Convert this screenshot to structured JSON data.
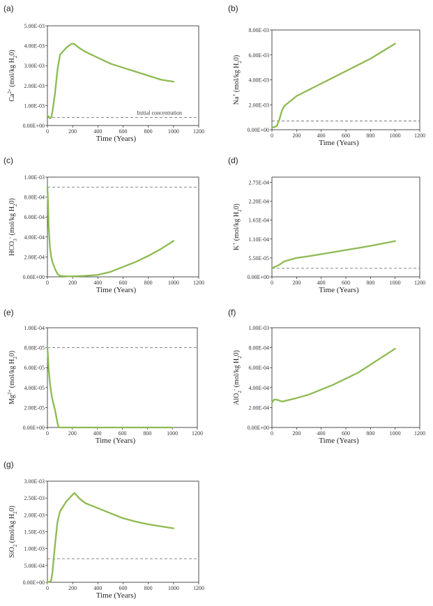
{
  "figure": {
    "colors": {
      "series": "#8cba51",
      "reference": "#777777",
      "axis": "#222222"
    }
  },
  "chart_data": [
    {
      "id": "a",
      "panel_label": "(a)",
      "type": "line",
      "ylabel_parts": [
        [
          "Ca",
          "n"
        ],
        [
          "2+",
          "sup"
        ],
        [
          " (mol/kg H",
          "n"
        ],
        [
          "2",
          "sub"
        ],
        [
          "0)",
          "n"
        ]
      ],
      "xlabel": "Time (Years)",
      "xlim": [
        0,
        1200
      ],
      "xticks": [
        0,
        200,
        400,
        600,
        800,
        1000,
        1200
      ],
      "ylim": [
        0,
        0.005
      ],
      "yticks": [
        0,
        0.001,
        0.002,
        0.003,
        0.004,
        0.005
      ],
      "ytick_labels": [
        "0.00E+00",
        "1.00E-03",
        "2.00E-03",
        "3.00E-03",
        "4.00E-03",
        "5.00E-03"
      ],
      "reference_value": 0.0004,
      "annotation": "Initial concentration",
      "series": [
        {
          "name": "Ca2+",
          "x": [
            0,
            10,
            20,
            30,
            40,
            60,
            80,
            100,
            150,
            190,
            210,
            250,
            300,
            400,
            500,
            600,
            700,
            800,
            900,
            1000
          ],
          "y": [
            0.0005,
            0.00045,
            0.00036,
            0.0004,
            0.0007,
            0.0016,
            0.0028,
            0.00355,
            0.0039,
            0.0041,
            0.0041,
            0.0039,
            0.0037,
            0.0034,
            0.0031,
            0.0029,
            0.0027,
            0.0025,
            0.0023,
            0.0022
          ]
        }
      ]
    },
    {
      "id": "b",
      "panel_label": "(b)",
      "type": "line",
      "ylabel_parts": [
        [
          "Na",
          "n"
        ],
        [
          "+",
          "sup"
        ],
        [
          " (mol/kg H",
          "n"
        ],
        [
          "2",
          "sub"
        ],
        [
          "0)",
          "n"
        ]
      ],
      "xlabel": "Time (Years)",
      "xlim": [
        0,
        1200
      ],
      "xticks": [
        0,
        200,
        400,
        600,
        800,
        1000,
        1200
      ],
      "ylim": [
        0,
        0.008
      ],
      "yticks": [
        0,
        0.002,
        0.004,
        0.006,
        0.008
      ],
      "ytick_labels": [
        "0.00E+00",
        "2.00E-03",
        "4.00E-03",
        "6.00E-03",
        "8.00E-03"
      ],
      "reference_value": 0.0007,
      "series": [
        {
          "name": "Na+",
          "x": [
            0,
            20,
            40,
            60,
            80,
            100,
            150,
            200,
            300,
            400,
            500,
            600,
            700,
            800,
            900,
            1000
          ],
          "y": [
            0.0002,
            0.0002,
            0.0003,
            0.0008,
            0.0015,
            0.0019,
            0.0023,
            0.0027,
            0.0032,
            0.0037,
            0.0042,
            0.0047,
            0.0052,
            0.0057,
            0.0063,
            0.0069
          ]
        }
      ]
    },
    {
      "id": "c",
      "panel_label": "(c)",
      "type": "line",
      "ylabel_parts": [
        [
          "HCO",
          "n"
        ],
        [
          "3",
          "sub"
        ],
        [
          "-",
          "sup"
        ],
        [
          " (mol/kg H",
          "n"
        ],
        [
          "2",
          "sub"
        ],
        [
          "0)",
          "n"
        ]
      ],
      "xlabel": "Time (Years)",
      "xlim": [
        0,
        1200
      ],
      "xticks": [
        0,
        200,
        400,
        600,
        800,
        1000,
        1200
      ],
      "ylim": [
        0,
        0.001
      ],
      "yticks": [
        0,
        0.0002,
        0.0004,
        0.0006,
        0.0008,
        0.001
      ],
      "ytick_labels": [
        "0.00E+00",
        "2.00E-04",
        "4.00E-04",
        "6.00E-04",
        "8.00E-04",
        "1.00E-03"
      ],
      "reference_value": 0.0009,
      "series": [
        {
          "name": "HCO3-",
          "x": [
            0,
            5,
            10,
            20,
            30,
            40,
            60,
            80,
            100,
            150,
            200,
            300,
            400,
            500,
            600,
            700,
            800,
            900,
            1000
          ],
          "y": [
            0.0009,
            0.00075,
            0.0005,
            0.0003,
            0.0002,
            0.00015,
            8e-05,
            3e-05,
            1e-05,
            5e-06,
            5e-06,
            1e-05,
            2e-05,
            5e-05,
            0.0001,
            0.00015,
            0.00021,
            0.00028,
            0.00036
          ]
        }
      ]
    },
    {
      "id": "d",
      "panel_label": "(d)",
      "type": "line",
      "ylabel_parts": [
        [
          "K",
          "n"
        ],
        [
          "+",
          "sup"
        ],
        [
          " (mol/kg H",
          "n"
        ],
        [
          "2",
          "sub"
        ],
        [
          "0)",
          "n"
        ]
      ],
      "xlabel": "Time (Years)",
      "xlim": [
        0,
        1200
      ],
      "xticks": [
        0,
        200,
        400,
        600,
        800,
        1000,
        1200
      ],
      "ylim": [
        0,
        0.00029
      ],
      "yticks": [
        0,
        5.5e-05,
        0.00011,
        0.000165,
        0.00022,
        0.000275
      ],
      "ytick_labels": [
        "0.00E+00",
        "5.50E-05",
        "1.10E-04",
        "1.65E-04",
        "2.20E-04",
        "2.75E-04"
      ],
      "reference_value": 2.5e-05,
      "series": [
        {
          "name": "K+",
          "x": [
            0,
            30,
            60,
            100,
            200,
            300,
            400,
            500,
            600,
            700,
            800,
            900,
            1000
          ],
          "y": [
            2.5e-05,
            3e-05,
            3.5e-05,
            4.5e-05,
            5.5e-05,
            6e-05,
            6.6e-05,
            7.2e-05,
            7.8e-05,
            8.4e-05,
            9e-05,
            9.7e-05,
            0.000104
          ]
        }
      ]
    },
    {
      "id": "e",
      "panel_label": "(e)",
      "type": "line",
      "ylabel_parts": [
        [
          "Mg",
          "n"
        ],
        [
          "2+",
          "sup"
        ],
        [
          " (mol/kg H",
          "n"
        ],
        [
          "2",
          "sub"
        ],
        [
          "0)",
          "n"
        ]
      ],
      "xlabel": "Time (Years)",
      "xlim": [
        0,
        1200
      ],
      "xticks": [
        0,
        200,
        400,
        600,
        800,
        1000,
        1200
      ],
      "ylim": [
        0,
        0.0001
      ],
      "yticks": [
        0,
        2e-05,
        4e-05,
        6e-05,
        8e-05,
        0.0001
      ],
      "ytick_labels": [
        "0.00E+00",
        "2.00E-05",
        "4.00E-05",
        "6.00E-05",
        "8.00E-05",
        "1.00E-04"
      ],
      "reference_value": 8e-05,
      "series": [
        {
          "name": "Mg2+",
          "x": [
            0,
            5,
            10,
            20,
            30,
            40,
            60,
            80,
            90,
            100,
            200,
            400,
            600,
            800,
            1000
          ],
          "y": [
            8e-05,
            7e-05,
            5.8e-05,
            4.5e-05,
            3.5e-05,
            2.8e-05,
            1.8e-05,
            5e-06,
            0,
            0,
            0,
            0,
            0,
            0,
            0
          ]
        }
      ]
    },
    {
      "id": "f",
      "panel_label": "(f)",
      "type": "line",
      "ylabel_parts": [
        [
          "AlO",
          "n"
        ],
        [
          "2",
          "sub"
        ],
        [
          "-",
          "sup"
        ],
        [
          " (mol/kg H",
          "n"
        ],
        [
          "2",
          "sub"
        ],
        [
          "0)",
          "n"
        ]
      ],
      "xlabel": "Time (Years)",
      "xlim": [
        0,
        1200
      ],
      "xticks": [
        0,
        200,
        400,
        600,
        800,
        1000,
        1200
      ],
      "ylim": [
        0,
        0.001
      ],
      "yticks": [
        0,
        0.0002,
        0.0004,
        0.0006,
        0.0008,
        0.001
      ],
      "ytick_labels": [
        "0.00E+00",
        "2.00E-04",
        "4.00E-04",
        "6.00E-04",
        "8.00E-04",
        "1.00E-03"
      ],
      "series": [
        {
          "name": "AlO2-",
          "x": [
            0,
            5,
            10,
            20,
            30,
            50,
            70,
            90,
            100,
            150,
            200,
            300,
            400,
            500,
            600,
            700,
            800,
            900,
            1000
          ],
          "y": [
            0.00024,
            0.00026,
            0.00027,
            0.00028,
            0.00028,
            0.000275,
            0.000265,
            0.00026,
            0.000265,
            0.00028,
            0.000295,
            0.00033,
            0.00038,
            0.00043,
            0.00049,
            0.00055,
            0.00063,
            0.00071,
            0.00079
          ]
        }
      ]
    },
    {
      "id": "g",
      "panel_label": "(g)",
      "type": "line",
      "ylabel_parts": [
        [
          "SiO",
          "n"
        ],
        [
          "2",
          "sub"
        ],
        [
          " (mol/kg H",
          "n"
        ],
        [
          "2",
          "sub"
        ],
        [
          "0)",
          "n"
        ]
      ],
      "xlabel": "Time (Years)",
      "xlim": [
        0,
        1200
      ],
      "xticks": [
        0,
        200,
        400,
        600,
        800,
        1000,
        1200
      ],
      "ylim": [
        0,
        0.003
      ],
      "yticks": [
        0,
        0.0005,
        0.001,
        0.0015,
        0.002,
        0.0025,
        0.003
      ],
      "ytick_labels": [
        "0.00E+00",
        "5.00E-04",
        "1.00E-03",
        "1.50E-03",
        "2.00E-03",
        "2.50E-03",
        "3.00E-03"
      ],
      "reference_value": 0.0007,
      "series": [
        {
          "name": "SiO2",
          "x": [
            0,
            20,
            30,
            40,
            60,
            80,
            100,
            150,
            200,
            215,
            250,
            300,
            400,
            500,
            600,
            700,
            800,
            900,
            1000
          ],
          "y": [
            0,
            2e-05,
            5e-05,
            0.0003,
            0.0011,
            0.0018,
            0.0021,
            0.0024,
            0.0026,
            0.00265,
            0.0025,
            0.00235,
            0.0022,
            0.00205,
            0.0019,
            0.0018,
            0.00172,
            0.00166,
            0.0016
          ]
        }
      ]
    }
  ]
}
